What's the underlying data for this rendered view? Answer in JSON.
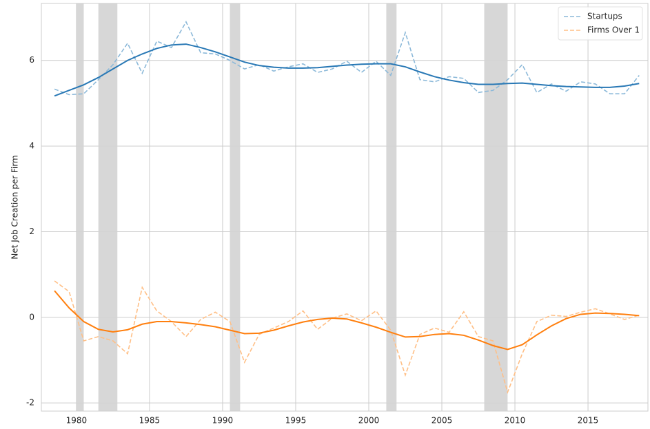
{
  "chart_data": {
    "type": "line",
    "y_label": "Net Job Creation per Firm",
    "x": [
      1978.5,
      1979.5,
      1980.5,
      1981.5,
      1982.5,
      1983.5,
      1984.5,
      1985.5,
      1986.5,
      1987.5,
      1988.5,
      1989.5,
      1990.5,
      1991.5,
      1992.5,
      1993.5,
      1994.5,
      1995.5,
      1996.5,
      1997.5,
      1998.5,
      1999.5,
      2000.5,
      2001.5,
      2002.5,
      2003.5,
      2004.5,
      2005.5,
      2006.5,
      2007.5,
      2008.5,
      2009.5,
      2010.5,
      2011.5,
      2012.5,
      2013.5,
      2014.5,
      2015.5,
      2016.5,
      2017.5,
      2018.5
    ],
    "series": [
      {
        "name": "Startups",
        "color": "#8cb9d9",
        "linestyle": "dashed",
        "values": [
          5.33,
          5.2,
          5.22,
          5.55,
          5.9,
          6.4,
          5.7,
          6.45,
          6.3,
          6.9,
          6.18,
          6.15,
          6.0,
          5.8,
          5.9,
          5.75,
          5.85,
          5.92,
          5.72,
          5.8,
          5.98,
          5.72,
          5.98,
          5.65,
          6.65,
          5.55,
          5.5,
          5.62,
          5.58,
          5.25,
          5.3,
          5.55,
          5.9,
          5.25,
          5.45,
          5.28,
          5.5,
          5.45,
          5.22,
          5.22,
          5.65
        ]
      },
      {
        "name": "Firms Over 1",
        "color": "#ffbf86",
        "linestyle": "dashed",
        "values": [
          0.85,
          0.6,
          -0.55,
          -0.45,
          -0.55,
          -0.85,
          0.7,
          0.15,
          -0.1,
          -0.45,
          -0.05,
          0.12,
          -0.1,
          -1.05,
          -0.4,
          -0.25,
          -0.1,
          0.15,
          -0.28,
          -0.02,
          0.08,
          -0.08,
          0.15,
          -0.3,
          -1.35,
          -0.4,
          -0.25,
          -0.35,
          0.13,
          -0.45,
          -0.55,
          -1.75,
          -0.85,
          -0.1,
          0.05,
          0.02,
          0.12,
          0.2,
          0.08,
          -0.05,
          0.05
        ]
      },
      {
        "color": "#2878b5",
        "linestyle": "solid",
        "values": [
          5.17,
          5.3,
          5.43,
          5.6,
          5.8,
          6.0,
          6.15,
          6.28,
          6.36,
          6.38,
          6.3,
          6.2,
          6.08,
          5.96,
          5.88,
          5.84,
          5.82,
          5.82,
          5.83,
          5.86,
          5.89,
          5.91,
          5.92,
          5.92,
          5.85,
          5.73,
          5.62,
          5.54,
          5.48,
          5.44,
          5.44,
          5.46,
          5.47,
          5.44,
          5.41,
          5.39,
          5.38,
          5.37,
          5.37,
          5.4,
          5.46
        ]
      },
      {
        "color": "#ff7f0e",
        "linestyle": "solid",
        "values": [
          0.62,
          0.22,
          -0.1,
          -0.28,
          -0.34,
          -0.29,
          -0.16,
          -0.1,
          -0.1,
          -0.13,
          -0.17,
          -0.22,
          -0.3,
          -0.38,
          -0.37,
          -0.3,
          -0.2,
          -0.11,
          -0.05,
          -0.02,
          -0.04,
          -0.13,
          -0.23,
          -0.35,
          -0.46,
          -0.45,
          -0.4,
          -0.38,
          -0.42,
          -0.53,
          -0.66,
          -0.75,
          -0.64,
          -0.41,
          -0.2,
          -0.03,
          0.07,
          0.1,
          0.09,
          0.07,
          0.04
        ]
      }
    ],
    "shaded_regions": [
      [
        1980.0,
        1980.5
      ],
      [
        1981.5,
        1982.8
      ],
      [
        1990.5,
        1991.2
      ],
      [
        2001.2,
        2001.9
      ],
      [
        2007.9,
        2009.5
      ]
    ],
    "shade_color": "#d3d3d3",
    "xlim": [
      1977.6,
      2019.1
    ],
    "xticks": [
      1980,
      1985,
      1990,
      1995,
      2000,
      2005,
      2010,
      2015
    ],
    "ylim": [
      -2.19,
      7.33
    ],
    "yticks": [
      -2,
      0,
      2,
      4,
      6
    ],
    "grid": true,
    "legend": "upper right"
  }
}
